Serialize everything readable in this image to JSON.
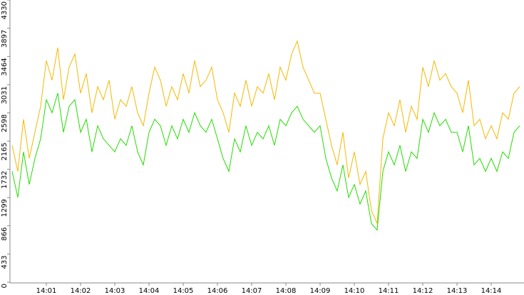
{
  "chart_data": {
    "type": "line",
    "categories": [
      null,
      null,
      null,
      null,
      null,
      null,
      "14:01",
      null,
      null,
      null,
      null,
      null,
      "14:02",
      null,
      null,
      null,
      null,
      null,
      "14:03",
      null,
      null,
      null,
      null,
      null,
      "14:04",
      null,
      null,
      null,
      null,
      null,
      "14:05",
      null,
      null,
      null,
      null,
      null,
      "14:06",
      null,
      null,
      null,
      null,
      null,
      "14:07",
      null,
      null,
      null,
      null,
      null,
      "14:08",
      null,
      null,
      null,
      null,
      null,
      "14:09",
      null,
      null,
      null,
      null,
      null,
      "14:10",
      null,
      null,
      null,
      null,
      null,
      "14:11",
      null,
      null,
      null,
      null,
      null,
      "14:12",
      null,
      null,
      null,
      null,
      null,
      "14:13",
      null,
      null,
      null,
      null,
      null,
      "14:14",
      null,
      null,
      null,
      null,
      null
    ],
    "series": [
      {
        "color": "#f5b800",
        "values": [
          2100,
          1700,
          2500,
          1900,
          2300,
          2700,
          3400,
          3100,
          3600,
          2800,
          3300,
          3500,
          2900,
          3200,
          2600,
          3000,
          2800,
          3100,
          2500,
          2800,
          2700,
          3000,
          2600,
          2400,
          2900,
          3300,
          3100,
          2700,
          3000,
          2800,
          3200,
          2900,
          3400,
          3000,
          3100,
          3300,
          2800,
          2600,
          2300,
          2900,
          2700,
          3100,
          2700,
          3000,
          2900,
          3200,
          2800,
          3300,
          3100,
          3500,
          3700,
          3300,
          3100,
          2900,
          2900,
          2500,
          2100,
          1800,
          2300,
          1600,
          2000,
          1500,
          1700,
          1100,
          900,
          2200,
          2600,
          2400,
          2800,
          2300,
          2700,
          2500,
          3300,
          3000,
          3400,
          3100,
          3200,
          3000,
          2900,
          2600,
          3100,
          2400,
          2500,
          2200,
          2400,
          2200,
          2600,
          2500,
          2900,
          3000
        ]
      },
      {
        "color": "#22dd00",
        "values": [
          1700,
          1300,
          2000,
          1500,
          1900,
          2200,
          2800,
          2600,
          2900,
          2300,
          2700,
          2800,
          2300,
          2500,
          2000,
          2400,
          2200,
          2100,
          2000,
          2200,
          2100,
          2400,
          2000,
          1800,
          2300,
          2500,
          2400,
          2100,
          2400,
          2200,
          2500,
          2300,
          2600,
          2400,
          2300,
          2500,
          2200,
          1900,
          1700,
          2200,
          2000,
          2400,
          2100,
          2300,
          2200,
          2400,
          2100,
          2500,
          2400,
          2600,
          2700,
          2500,
          2400,
          2300,
          2400,
          1900,
          1600,
          1400,
          1800,
          1300,
          1500,
          1200,
          1400,
          900,
          800,
          1700,
          2000,
          1800,
          2100,
          1700,
          2000,
          1900,
          2500,
          2300,
          2600,
          2400,
          2500,
          2300,
          2300,
          2000,
          2400,
          1800,
          1900,
          1700,
          1900,
          1700,
          2000,
          1900,
          2300,
          2400
        ]
      }
    ],
    "ylim": [
      0,
      4330
    ],
    "yticks": [
      0,
      433,
      866,
      1299,
      1732,
      2165,
      2598,
      3031,
      3464,
      3897,
      4330
    ]
  }
}
